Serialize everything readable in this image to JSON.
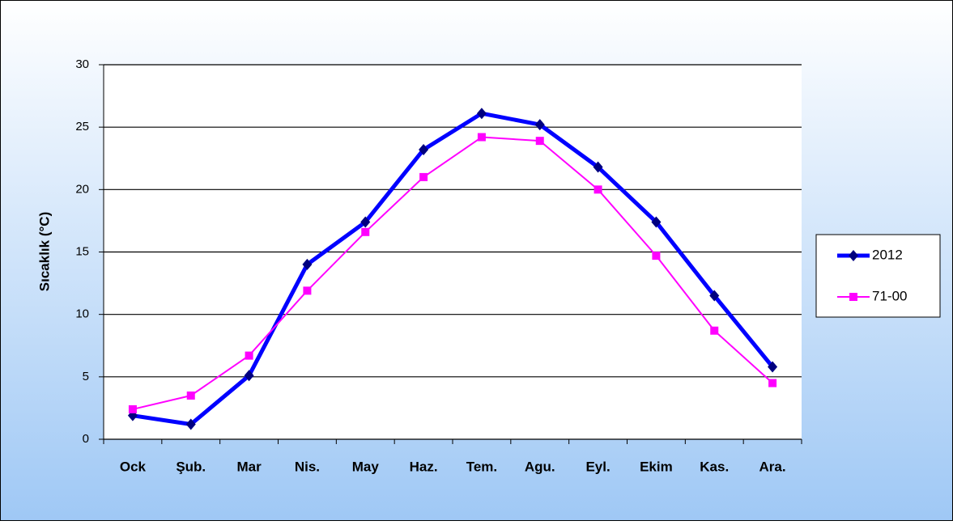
{
  "chart_data": {
    "type": "line",
    "ylabel": "Sıcaklık (°C)",
    "categories": [
      "Ock",
      "Şub.",
      "Mar",
      "Nis.",
      "May",
      "Haz.",
      "Tem.",
      "Agu.",
      "Eyl.",
      "Ekim",
      "Kas.",
      "Ara."
    ],
    "series": [
      {
        "name": "2012",
        "color": "#0000ff",
        "marker_color": "#000080",
        "marker": "diamond",
        "values": [
          1.9,
          1.2,
          5.1,
          14,
          17.4,
          23.2,
          26.1,
          25.2,
          21.8,
          17.4,
          11.5,
          5.8
        ]
      },
      {
        "name": "71-00",
        "color": "#ff00ff",
        "marker_color": "#ff00ff",
        "marker": "square",
        "values": [
          2.4,
          3.5,
          6.7,
          11.9,
          16.6,
          21,
          24.2,
          23.9,
          20,
          14.7,
          8.7,
          4.5
        ]
      }
    ],
    "ylim": [
      0,
      30
    ],
    "yticks": [
      0,
      5,
      10,
      15,
      20,
      25,
      30
    ],
    "grid": true,
    "legend": "right"
  }
}
